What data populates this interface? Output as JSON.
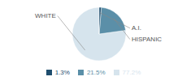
{
  "chart_data": {
    "type": "pie",
    "categories": [
      "WHITE",
      "HISPANIC",
      "A.I."
    ],
    "values": [
      77.2,
      21.5,
      1.3
    ],
    "value_labels": [
      "77.2%",
      "21.5%",
      "1.3%"
    ],
    "colors": [
      "#d6e4ed",
      "#5b8fa8",
      "#1f4e6e"
    ],
    "legend": "bottom"
  }
}
